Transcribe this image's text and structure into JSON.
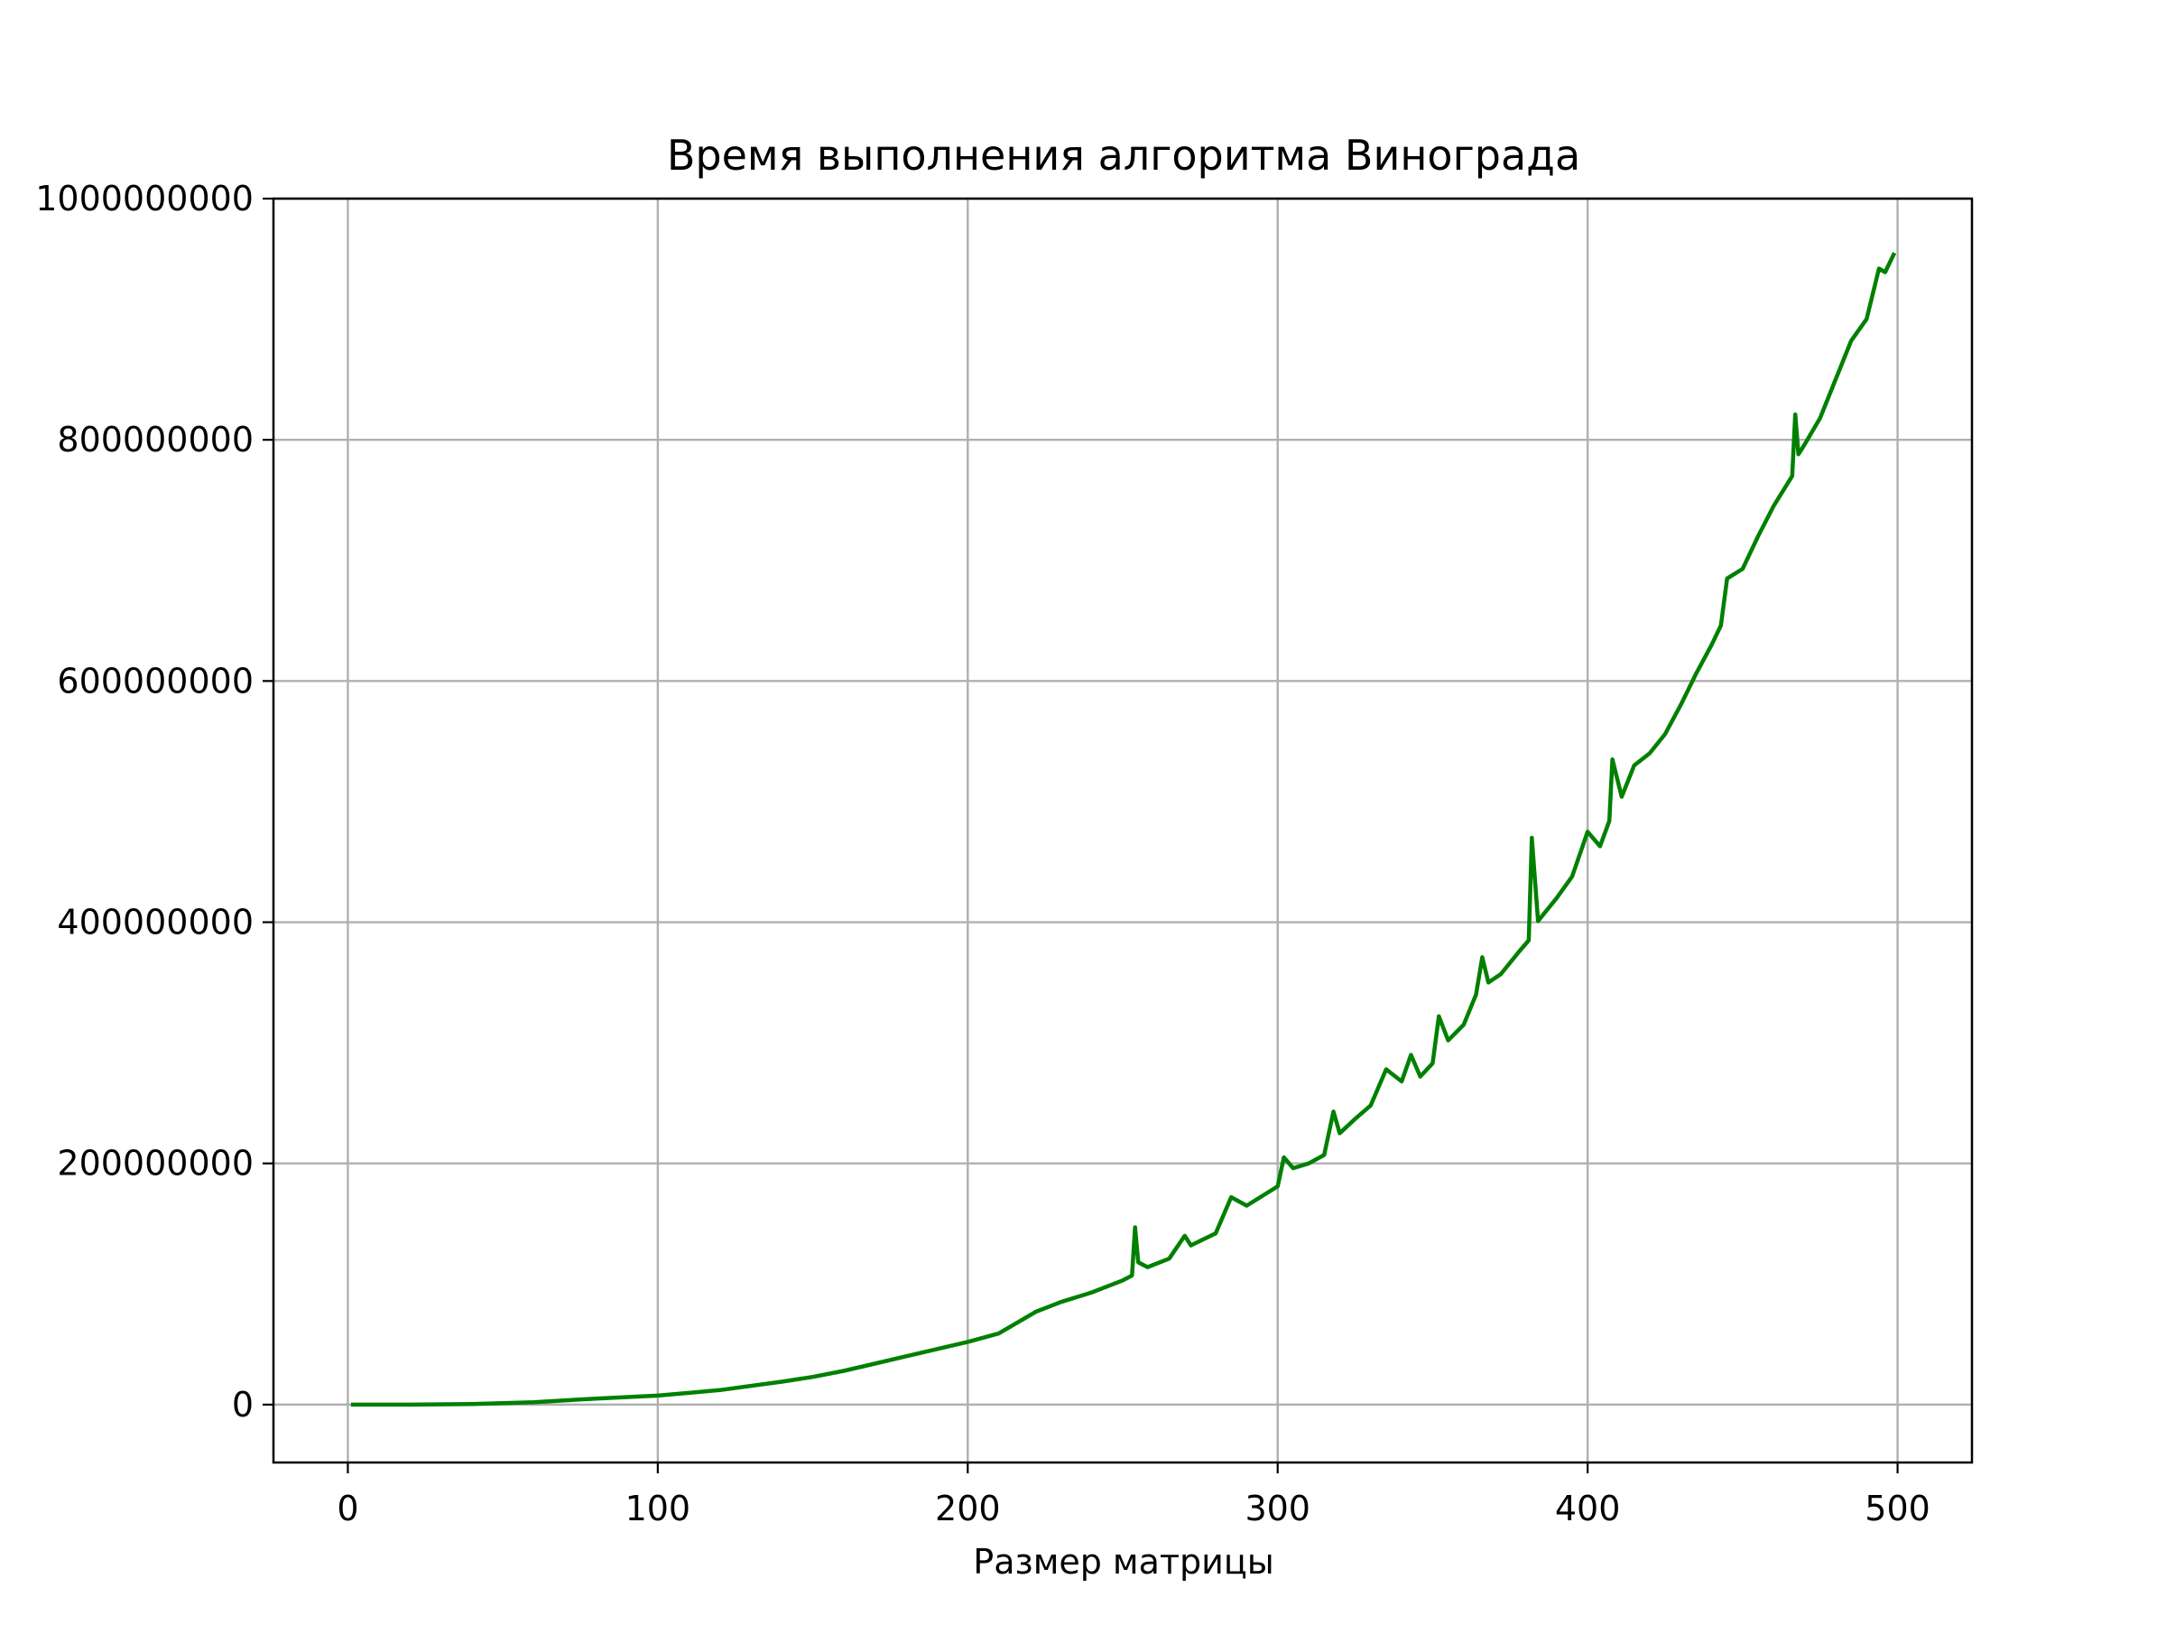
{
  "chart_data": {
    "type": "line",
    "title": "Время выполнения алгоритма Винограда",
    "xlabel": "Размер матрицы",
    "ylabel": "",
    "xlim": [
      -24,
      524
    ],
    "ylim": [
      -48000000,
      1000000000
    ],
    "x_ticks": [
      0,
      100,
      200,
      300,
      400,
      500
    ],
    "x_tick_labels": [
      "0",
      "100",
      "200",
      "300",
      "400",
      "500"
    ],
    "y_ticks": [
      0,
      200000000,
      400000000,
      600000000,
      800000000,
      1000000000
    ],
    "y_tick_labels": [
      "0",
      "200000000",
      "400000000",
      "600000000",
      "800000000",
      "1000000000"
    ],
    "grid": true,
    "legend": "none",
    "series": [
      {
        "color": "#008000",
        "x": [
          1,
          20,
          40,
          60,
          80,
          100,
          120,
          140,
          150,
          160,
          170,
          180,
          190,
          200,
          210,
          222,
          230,
          240,
          250,
          253,
          254,
          255,
          258,
          265,
          270,
          272,
          280,
          285,
          290,
          300,
          302,
          305,
          310,
          315,
          318,
          320,
          325,
          330,
          335,
          340,
          343,
          346,
          350,
          352,
          355,
          360,
          364,
          366,
          368,
          372,
          378,
          381,
          382,
          384,
          390,
          395,
          400,
          404,
          407,
          408,
          411,
          415,
          420,
          425,
          430,
          435,
          440,
          443,
          445,
          450,
          455,
          460,
          466,
          467,
          468,
          470,
          475,
          480,
          485,
          490,
          494,
          496,
          499
        ],
        "y": [
          0,
          0,
          500000,
          2000000,
          5000000,
          7500000,
          12000000,
          19000000,
          23000000,
          28000000,
          34000000,
          40000000,
          46000000,
          52000000,
          59000000,
          77000000,
          85000000,
          93000000,
          103000000,
          107000000,
          147000000,
          118000000,
          114000000,
          121000000,
          140000000,
          132000000,
          142000000,
          172000000,
          165000000,
          181000000,
          205000000,
          196000000,
          200000000,
          207000000,
          243000000,
          225000000,
          237000000,
          248000000,
          278000000,
          268000000,
          290000000,
          272000000,
          283000000,
          322000000,
          302000000,
          315000000,
          340000000,
          371000000,
          350000000,
          357000000,
          376000000,
          385000000,
          470000000,
          401000000,
          420000000,
          438000000,
          475000000,
          463000000,
          484000000,
          535000000,
          504000000,
          530000000,
          540000000,
          556000000,
          580000000,
          606000000,
          630000000,
          646000000,
          685000000,
          693000000,
          720000000,
          745000000,
          770000000,
          821000000,
          788000000,
          796000000,
          818000000,
          850000000,
          882000000,
          900000000,
          942000000,
          939000000,
          955000000
        ]
      }
    ]
  }
}
